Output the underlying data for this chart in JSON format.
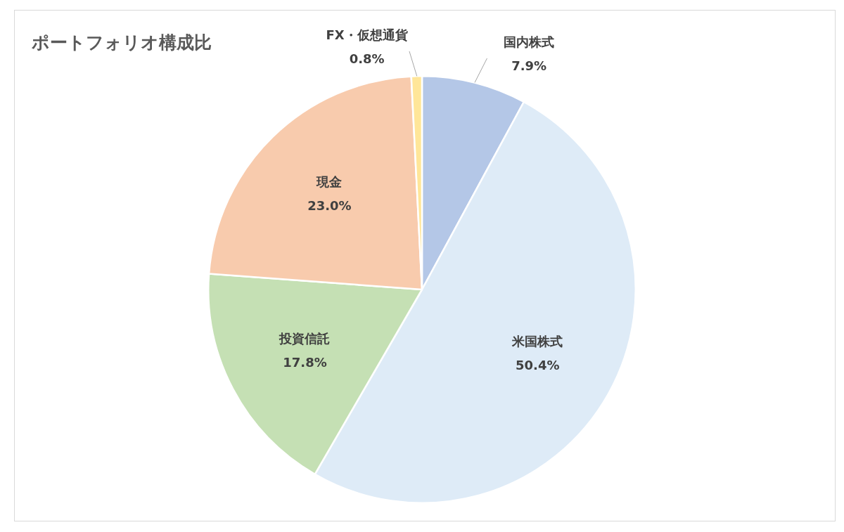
{
  "chart_data": {
    "type": "pie",
    "title": "ポートフォリオ構成比",
    "categories": [
      "国内株式",
      "米国株式",
      "投資信託",
      "現金",
      "FX・仮想通貨"
    ],
    "values": [
      7.9,
      50.4,
      17.8,
      23.0,
      0.8
    ],
    "value_labels": [
      "7.9%",
      "50.4%",
      "17.8%",
      "23.0%",
      "0.8%"
    ],
    "colors": [
      "#b4c7e7",
      "#deebf7",
      "#c5e0b4",
      "#f8cbad",
      "#ffe699"
    ],
    "legend": false
  }
}
